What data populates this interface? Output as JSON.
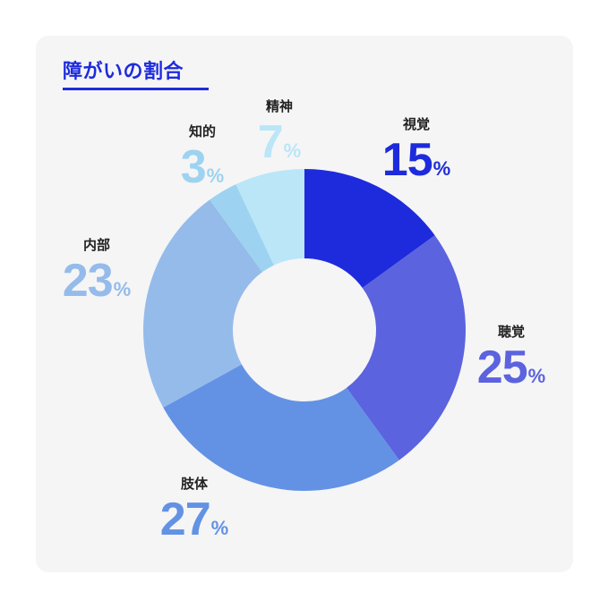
{
  "title": "障がいの割合",
  "chart_data": {
    "type": "pie",
    "donut": true,
    "slices": [
      {
        "name": "視覚",
        "value": 15,
        "unit": "%",
        "color": "#1e2bdc"
      },
      {
        "name": "聴覚",
        "value": 25,
        "unit": "%",
        "color": "#5b63de"
      },
      {
        "name": "肢体",
        "value": 27,
        "unit": "%",
        "color": "#6392e5"
      },
      {
        "name": "内部",
        "value": 23,
        "unit": "%",
        "color": "#95bbea"
      },
      {
        "name": "知的",
        "value": 3,
        "unit": "%",
        "color": "#9dd3f0"
      },
      {
        "name": "精神",
        "value": 7,
        "unit": "%",
        "color": "#bae6f8"
      }
    ]
  }
}
